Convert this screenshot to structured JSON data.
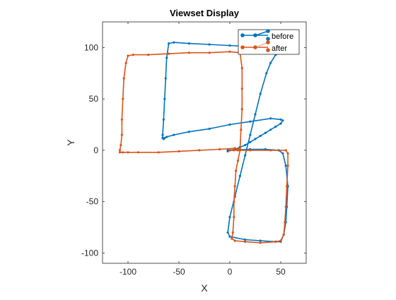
{
  "chart_data": {
    "type": "line",
    "title": "Viewset Display",
    "xlabel": "X",
    "ylabel": "Y",
    "xlim": [
      -125,
      75
    ],
    "ylim": [
      -110,
      125
    ],
    "xticks": [
      -100,
      -50,
      0,
      50
    ],
    "yticks": [
      -100,
      -50,
      0,
      50,
      100
    ],
    "xtick_labels": [
      "-100",
      "-50",
      "0",
      "50"
    ],
    "ytick_labels": [
      "-100",
      "-50",
      "0",
      "50",
      "100"
    ],
    "grid": false,
    "legend_position": "top-right",
    "series": [
      {
        "name": "before",
        "color": "#0072BD",
        "marker": "point",
        "x": [
          0,
          20,
          35,
          48,
          52,
          55,
          57,
          56,
          55,
          53,
          50,
          45,
          30,
          15,
          0,
          -2,
          0,
          5,
          10,
          15,
          20,
          25,
          30,
          36,
          40,
          45,
          49,
          51,
          50,
          40,
          20,
          0,
          -20,
          -40,
          -55,
          -60,
          -62,
          -63,
          -64,
          -65,
          -66,
          -66,
          -65,
          -64,
          -62,
          -55,
          -40,
          -20,
          0,
          20,
          40,
          50,
          52,
          50,
          45,
          40,
          35,
          30,
          25,
          20,
          15,
          10,
          5,
          0,
          -2,
          -2
        ],
        "y": [
          0,
          1,
          1,
          0,
          -3,
          -15,
          -35,
          -55,
          -70,
          -82,
          -89,
          -89,
          -88,
          -87,
          -84,
          -80,
          -65,
          -45,
          -25,
          -5,
          15,
          35,
          55,
          75,
          85,
          93,
          96,
          97,
          98,
          100,
          101,
          102,
          103,
          104,
          105,
          104,
          90,
          70,
          50,
          30,
          15,
          12,
          11,
          12,
          13,
          15,
          18,
          21,
          25,
          28,
          31,
          30,
          29,
          26,
          23,
          20,
          17,
          14,
          11,
          8,
          5,
          3,
          1,
          0,
          -1,
          0
        ]
      },
      {
        "name": "after",
        "color": "#D95319",
        "marker": "point",
        "x": [
          0,
          20,
          40,
          55,
          57,
          57,
          56,
          55,
          54,
          53,
          50,
          45,
          30,
          15,
          5,
          2,
          3,
          4,
          4,
          5,
          6,
          8,
          10,
          11,
          12,
          12,
          12,
          10,
          0,
          -20,
          -40,
          -60,
          -80,
          -95,
          -100,
          -102,
          -104,
          -105,
          -106,
          -106,
          -107,
          -108,
          -108,
          -105,
          -100,
          -90,
          -70,
          -50,
          -30,
          -10,
          5,
          10,
          8,
          4,
          0
        ],
        "y": [
          0,
          0,
          0,
          0,
          -3,
          -15,
          -35,
          -55,
          -70,
          -82,
          -88,
          -89,
          -90,
          -89,
          -88,
          -86,
          -80,
          -65,
          -50,
          -35,
          -20,
          -10,
          0,
          20,
          40,
          60,
          80,
          95,
          96,
          95,
          95,
          94,
          93,
          93,
          92,
          85,
          70,
          50,
          30,
          15,
          5,
          0,
          -2,
          -2,
          -2,
          -2,
          -2,
          -1,
          0,
          1,
          2,
          1,
          0,
          0,
          0
        ]
      }
    ]
  }
}
